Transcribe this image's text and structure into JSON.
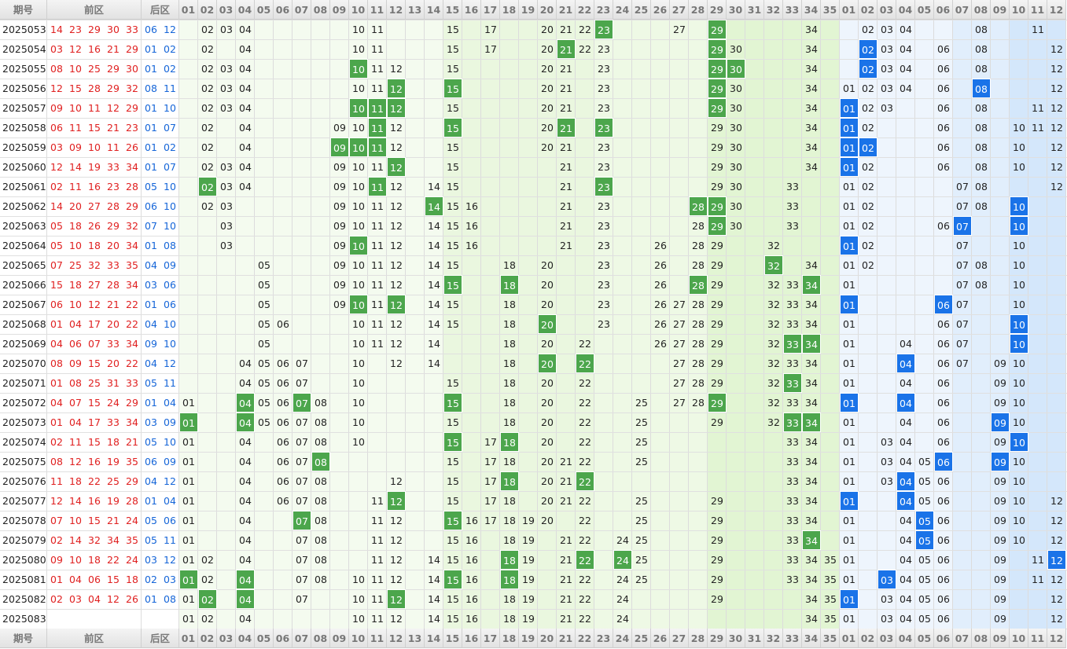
{
  "header": {
    "issue": "期号",
    "front": "前区",
    "back": "后区",
    "front_numbers": [
      "01",
      "02",
      "03",
      "04",
      "05",
      "06",
      "07",
      "08",
      "09",
      "10",
      "11",
      "12",
      "13",
      "14",
      "15",
      "16",
      "17",
      "18",
      "19",
      "20",
      "21",
      "22",
      "23",
      "24",
      "25",
      "26",
      "27",
      "28",
      "29",
      "30",
      "31",
      "32",
      "33",
      "34",
      "35"
    ],
    "back_numbers": [
      "01",
      "02",
      "03",
      "04",
      "05",
      "06",
      "07",
      "08",
      "09",
      "10",
      "11",
      "12"
    ]
  },
  "rows": [
    {
      "issue": "2025053",
      "front": [
        "14",
        "23",
        "29",
        "30",
        "33"
      ],
      "back": [
        "06",
        "12"
      ],
      "front_trend": [
        "02",
        "03",
        "04",
        "10",
        "11",
        "15",
        "17",
        "20",
        "21",
        "22",
        "27",
        "34"
      ],
      "front_hits": [
        "23",
        "29"
      ],
      "back_trend": [
        "02",
        "03",
        "04",
        "08",
        "11"
      ],
      "back_hits": []
    },
    {
      "issue": "2025054",
      "front": [
        "03",
        "12",
        "16",
        "21",
        "29"
      ],
      "back": [
        "01",
        "02"
      ],
      "front_trend": [
        "02",
        "04",
        "10",
        "11",
        "15",
        "17",
        "20",
        "22",
        "23",
        "30",
        "34"
      ],
      "front_hits": [
        "21",
        "29"
      ],
      "back_trend": [
        "03",
        "04",
        "06",
        "08",
        "12"
      ],
      "back_hits": [
        "02"
      ]
    },
    {
      "issue": "2025055",
      "front": [
        "08",
        "10",
        "25",
        "29",
        "30"
      ],
      "back": [
        "01",
        "02"
      ],
      "front_trend": [
        "02",
        "03",
        "04",
        "11",
        "12",
        "15",
        "20",
        "21",
        "23",
        "34"
      ],
      "front_hits": [
        "10",
        "29",
        "30"
      ],
      "back_trend": [
        "03",
        "04",
        "06",
        "08",
        "12"
      ],
      "back_hits": [
        "02"
      ]
    },
    {
      "issue": "2025056",
      "front": [
        "12",
        "15",
        "28",
        "29",
        "32"
      ],
      "back": [
        "08",
        "11"
      ],
      "front_trend": [
        "02",
        "03",
        "04",
        "10",
        "11",
        "20",
        "21",
        "23",
        "30",
        "34"
      ],
      "front_hits": [
        "12",
        "15",
        "29"
      ],
      "back_trend": [
        "01",
        "02",
        "03",
        "04",
        "06",
        "12"
      ],
      "back_hits": [
        "08"
      ]
    },
    {
      "issue": "2025057",
      "front": [
        "09",
        "10",
        "11",
        "12",
        "29"
      ],
      "back": [
        "01",
        "10"
      ],
      "front_trend": [
        "02",
        "03",
        "04",
        "15",
        "20",
        "21",
        "23",
        "30",
        "34"
      ],
      "front_hits": [
        "10",
        "11",
        "12",
        "29"
      ],
      "back_trend": [
        "02",
        "03",
        "06",
        "08",
        "11",
        "12"
      ],
      "back_hits": [
        "01"
      ]
    },
    {
      "issue": "2025058",
      "front": [
        "06",
        "11",
        "15",
        "21",
        "23"
      ],
      "back": [
        "01",
        "07"
      ],
      "front_trend": [
        "02",
        "04",
        "09",
        "10",
        "12",
        "20",
        "29",
        "30",
        "34"
      ],
      "front_hits": [
        "11",
        "15",
        "21",
        "23"
      ],
      "back_trend": [
        "02",
        "06",
        "08",
        "10",
        "11",
        "12"
      ],
      "back_hits": [
        "01"
      ]
    },
    {
      "issue": "2025059",
      "front": [
        "03",
        "09",
        "10",
        "11",
        "26"
      ],
      "back": [
        "01",
        "02"
      ],
      "front_trend": [
        "02",
        "04",
        "12",
        "15",
        "20",
        "21",
        "23",
        "29",
        "30",
        "34"
      ],
      "front_hits": [
        "09",
        "10",
        "11"
      ],
      "back_trend": [
        "06",
        "08",
        "10",
        "12"
      ],
      "back_hits": [
        "01",
        "02"
      ]
    },
    {
      "issue": "2025060",
      "front": [
        "12",
        "14",
        "19",
        "33",
        "34"
      ],
      "back": [
        "01",
        "07"
      ],
      "front_trend": [
        "02",
        "03",
        "04",
        "09",
        "10",
        "11",
        "15",
        "21",
        "23",
        "29",
        "30",
        "34"
      ],
      "front_hits": [
        "12"
      ],
      "back_trend": [
        "02",
        "06",
        "08",
        "10",
        "12"
      ],
      "back_hits": [
        "01"
      ]
    },
    {
      "issue": "2025061",
      "front": [
        "02",
        "11",
        "16",
        "23",
        "28"
      ],
      "back": [
        "05",
        "10"
      ],
      "front_trend": [
        "03",
        "04",
        "09",
        "10",
        "12",
        "14",
        "15",
        "21",
        "29",
        "30",
        "33"
      ],
      "front_hits": [
        "02",
        "11",
        "23"
      ],
      "back_trend": [
        "01",
        "02",
        "07",
        "08",
        "12"
      ],
      "back_hits": []
    },
    {
      "issue": "2025062",
      "front": [
        "14",
        "20",
        "27",
        "28",
        "29"
      ],
      "back": [
        "06",
        "10"
      ],
      "front_trend": [
        "02",
        "03",
        "09",
        "10",
        "11",
        "12",
        "15",
        "16",
        "21",
        "23",
        "30",
        "33"
      ],
      "front_hits": [
        "14",
        "28",
        "29"
      ],
      "back_trend": [
        "01",
        "02",
        "07",
        "08"
      ],
      "back_hits": [
        "10"
      ]
    },
    {
      "issue": "2025063",
      "front": [
        "05",
        "18",
        "26",
        "29",
        "32"
      ],
      "back": [
        "07",
        "10"
      ],
      "front_trend": [
        "03",
        "09",
        "10",
        "11",
        "12",
        "14",
        "15",
        "16",
        "21",
        "23",
        "28",
        "30",
        "33"
      ],
      "front_hits": [
        "29"
      ],
      "back_trend": [
        "01",
        "02",
        "06"
      ],
      "back_hits": [
        "07",
        "10"
      ]
    },
    {
      "issue": "2025064",
      "front": [
        "05",
        "10",
        "18",
        "20",
        "34"
      ],
      "back": [
        "01",
        "08"
      ],
      "front_trend": [
        "03",
        "09",
        "11",
        "12",
        "14",
        "15",
        "16",
        "21",
        "23",
        "26",
        "28",
        "29",
        "32"
      ],
      "front_hits": [
        "10"
      ],
      "back_trend": [
        "02",
        "07",
        "10"
      ],
      "back_hits": [
        "01"
      ]
    },
    {
      "issue": "2025065",
      "front": [
        "07",
        "25",
        "32",
        "33",
        "35"
      ],
      "back": [
        "04",
        "09"
      ],
      "front_trend": [
        "05",
        "09",
        "10",
        "11",
        "12",
        "14",
        "15",
        "18",
        "20",
        "23",
        "26",
        "28",
        "29",
        "34"
      ],
      "front_hits": [
        "32"
      ],
      "back_trend": [
        "01",
        "02",
        "07",
        "08",
        "10"
      ],
      "back_hits": []
    },
    {
      "issue": "2025066",
      "front": [
        "15",
        "18",
        "27",
        "28",
        "34"
      ],
      "back": [
        "03",
        "06"
      ],
      "front_trend": [
        "05",
        "09",
        "10",
        "11",
        "12",
        "14",
        "20",
        "23",
        "26",
        "29",
        "32",
        "33"
      ],
      "front_hits": [
        "15",
        "18",
        "28",
        "34"
      ],
      "back_trend": [
        "01",
        "07",
        "08",
        "10"
      ],
      "back_hits": []
    },
    {
      "issue": "2025067",
      "front": [
        "06",
        "10",
        "12",
        "21",
        "22"
      ],
      "back": [
        "01",
        "06"
      ],
      "front_trend": [
        "05",
        "09",
        "11",
        "14",
        "15",
        "18",
        "20",
        "23",
        "26",
        "27",
        "28",
        "29",
        "32",
        "33",
        "34"
      ],
      "front_hits": [
        "10",
        "12"
      ],
      "back_trend": [
        "07",
        "10"
      ],
      "back_hits": [
        "01",
        "06"
      ]
    },
    {
      "issue": "2025068",
      "front": [
        "01",
        "04",
        "17",
        "20",
        "22"
      ],
      "back": [
        "04",
        "10"
      ],
      "front_trend": [
        "05",
        "06",
        "10",
        "11",
        "12",
        "14",
        "15",
        "18",
        "23",
        "26",
        "27",
        "28",
        "29",
        "32",
        "33",
        "34"
      ],
      "front_hits": [
        "20"
      ],
      "back_trend": [
        "01",
        "06",
        "07"
      ],
      "back_hits": [
        "10"
      ]
    },
    {
      "issue": "2025069",
      "front": [
        "04",
        "06",
        "07",
        "33",
        "34"
      ],
      "back": [
        "09",
        "10"
      ],
      "front_trend": [
        "05",
        "10",
        "11",
        "12",
        "14",
        "18",
        "20",
        "22",
        "26",
        "27",
        "28",
        "29",
        "32"
      ],
      "front_hits": [
        "33",
        "34"
      ],
      "back_trend": [
        "01",
        "04",
        "06",
        "07"
      ],
      "back_hits": [
        "10"
      ]
    },
    {
      "issue": "2025070",
      "front": [
        "08",
        "09",
        "15",
        "20",
        "22"
      ],
      "back": [
        "04",
        "12"
      ],
      "front_trend": [
        "04",
        "05",
        "06",
        "07",
        "10",
        "12",
        "14",
        "18",
        "27",
        "28",
        "29",
        "32",
        "33",
        "34"
      ],
      "front_hits": [
        "20",
        "22"
      ],
      "back_trend": [
        "01",
        "06",
        "07",
        "09",
        "10"
      ],
      "back_hits": [
        "04"
      ]
    },
    {
      "issue": "2025071",
      "front": [
        "01",
        "08",
        "25",
        "31",
        "33"
      ],
      "back": [
        "05",
        "11"
      ],
      "front_trend": [
        "04",
        "05",
        "06",
        "07",
        "10",
        "15",
        "18",
        "20",
        "22",
        "27",
        "28",
        "29",
        "32",
        "34"
      ],
      "front_hits": [
        "33"
      ],
      "back_trend": [
        "01",
        "04",
        "06",
        "09",
        "10"
      ],
      "back_hits": []
    },
    {
      "issue": "2025072",
      "front": [
        "04",
        "07",
        "15",
        "24",
        "29"
      ],
      "back": [
        "01",
        "04"
      ],
      "front_trend": [
        "01",
        "05",
        "06",
        "08",
        "10",
        "18",
        "20",
        "22",
        "25",
        "27",
        "28",
        "32",
        "33",
        "34"
      ],
      "front_hits": [
        "04",
        "07",
        "15",
        "29"
      ],
      "back_trend": [
        "06",
        "09",
        "10"
      ],
      "back_hits": [
        "01",
        "04"
      ]
    },
    {
      "issue": "2025073",
      "front": [
        "01",
        "04",
        "17",
        "33",
        "34"
      ],
      "back": [
        "03",
        "09"
      ],
      "front_trend": [
        "05",
        "06",
        "07",
        "08",
        "10",
        "15",
        "18",
        "20",
        "22",
        "25",
        "29",
        "32"
      ],
      "front_hits": [
        "01",
        "04",
        "33",
        "34"
      ],
      "back_trend": [
        "01",
        "04",
        "06",
        "10"
      ],
      "back_hits": [
        "09"
      ]
    },
    {
      "issue": "2025074",
      "front": [
        "02",
        "11",
        "15",
        "18",
        "21"
      ],
      "back": [
        "05",
        "10"
      ],
      "front_trend": [
        "01",
        "04",
        "06",
        "07",
        "08",
        "10",
        "17",
        "20",
        "22",
        "25",
        "33",
        "34"
      ],
      "front_hits": [
        "15",
        "18"
      ],
      "back_trend": [
        "01",
        "03",
        "04",
        "06",
        "09"
      ],
      "back_hits": [
        "10"
      ]
    },
    {
      "issue": "2025075",
      "front": [
        "08",
        "12",
        "16",
        "19",
        "35"
      ],
      "back": [
        "06",
        "09"
      ],
      "front_trend": [
        "01",
        "04",
        "06",
        "07",
        "15",
        "17",
        "18",
        "20",
        "21",
        "22",
        "25",
        "33",
        "34"
      ],
      "front_hits": [
        "08"
      ],
      "back_trend": [
        "01",
        "03",
        "04",
        "05",
        "10"
      ],
      "back_hits": [
        "06",
        "09"
      ]
    },
    {
      "issue": "2025076",
      "front": [
        "11",
        "18",
        "22",
        "25",
        "29"
      ],
      "back": [
        "04",
        "12"
      ],
      "front_trend": [
        "01",
        "04",
        "06",
        "07",
        "08",
        "12",
        "15",
        "17",
        "20",
        "21",
        "33",
        "34"
      ],
      "front_hits": [
        "18",
        "22"
      ],
      "back_trend": [
        "01",
        "03",
        "05",
        "06",
        "09",
        "10"
      ],
      "back_hits": [
        "04"
      ]
    },
    {
      "issue": "2025077",
      "front": [
        "12",
        "14",
        "16",
        "19",
        "28"
      ],
      "back": [
        "01",
        "04"
      ],
      "front_trend": [
        "01",
        "04",
        "06",
        "07",
        "08",
        "11",
        "15",
        "17",
        "18",
        "20",
        "21",
        "22",
        "25",
        "29",
        "33",
        "34"
      ],
      "front_hits": [
        "12"
      ],
      "back_trend": [
        "05",
        "06",
        "09",
        "10",
        "12"
      ],
      "back_hits": [
        "01",
        "04"
      ]
    },
    {
      "issue": "2025078",
      "front": [
        "07",
        "10",
        "15",
        "21",
        "24"
      ],
      "back": [
        "05",
        "06"
      ],
      "front_trend": [
        "01",
        "04",
        "08",
        "11",
        "12",
        "16",
        "17",
        "18",
        "19",
        "20",
        "22",
        "25",
        "29",
        "33",
        "34"
      ],
      "front_hits": [
        "07",
        "15"
      ],
      "back_trend": [
        "01",
        "04",
        "06",
        "09",
        "10",
        "12"
      ],
      "back_hits": [
        "05"
      ]
    },
    {
      "issue": "2025079",
      "front": [
        "02",
        "14",
        "32",
        "34",
        "35"
      ],
      "back": [
        "05",
        "11"
      ],
      "front_trend": [
        "01",
        "04",
        "07",
        "08",
        "11",
        "12",
        "15",
        "16",
        "18",
        "19",
        "21",
        "22",
        "24",
        "25",
        "29",
        "33"
      ],
      "front_hits": [
        "34"
      ],
      "back_trend": [
        "01",
        "04",
        "06",
        "09",
        "10",
        "12"
      ],
      "back_hits": [
        "05"
      ]
    },
    {
      "issue": "2025080",
      "front": [
        "09",
        "10",
        "18",
        "22",
        "24"
      ],
      "back": [
        "03",
        "12"
      ],
      "front_trend": [
        "01",
        "02",
        "04",
        "07",
        "08",
        "11",
        "12",
        "14",
        "15",
        "16",
        "19",
        "21",
        "25",
        "29",
        "33",
        "34",
        "35"
      ],
      "front_hits": [
        "18",
        "22",
        "24"
      ],
      "back_trend": [
        "01",
        "04",
        "05",
        "06",
        "09",
        "11"
      ],
      "back_hits": [
        "12"
      ]
    },
    {
      "issue": "2025081",
      "front": [
        "01",
        "04",
        "06",
        "15",
        "18"
      ],
      "back": [
        "02",
        "03"
      ],
      "front_trend": [
        "02",
        "07",
        "08",
        "10",
        "11",
        "12",
        "14",
        "16",
        "19",
        "21",
        "22",
        "24",
        "25",
        "29",
        "33",
        "34",
        "35"
      ],
      "front_hits": [
        "01",
        "04",
        "15",
        "18"
      ],
      "back_trend": [
        "01",
        "04",
        "05",
        "06",
        "09",
        "11",
        "12"
      ],
      "back_hits": [
        "03"
      ]
    },
    {
      "issue": "2025082",
      "front": [
        "02",
        "03",
        "04",
        "12",
        "26"
      ],
      "back": [
        "01",
        "08"
      ],
      "front_trend": [
        "01",
        "07",
        "10",
        "11",
        "14",
        "15",
        "16",
        "18",
        "19",
        "21",
        "22",
        "24",
        "29",
        "34",
        "35"
      ],
      "front_hits": [
        "02",
        "04",
        "12"
      ],
      "back_trend": [
        "03",
        "04",
        "05",
        "06",
        "09",
        "12"
      ],
      "back_hits": [
        "01"
      ]
    },
    {
      "issue": "2025083",
      "front": [],
      "back": [],
      "front_trend": [
        "01",
        "02",
        "04",
        "10",
        "11",
        "12",
        "14",
        "15",
        "16",
        "18",
        "19",
        "21",
        "22",
        "24",
        "34",
        "35"
      ],
      "front_hits": [],
      "back_trend": [
        "01",
        "03",
        "04",
        "05",
        "06",
        "09",
        "12"
      ],
      "back_hits": []
    }
  ]
}
